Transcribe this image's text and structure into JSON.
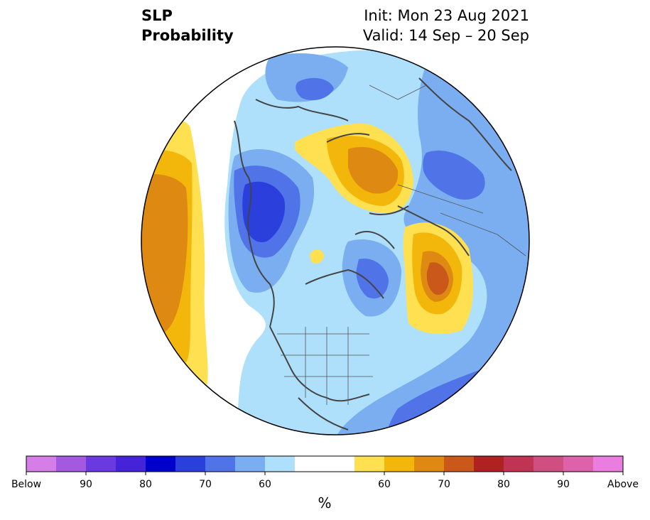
{
  "header": {
    "title_line1": "SLP",
    "title_line2": "Probability",
    "init_text": "Init: Mon 23 Aug 2021",
    "valid_text": "Valid: 14 Sep – 20 Sep"
  },
  "colorbar": {
    "unit": "%",
    "tick_labels": [
      "Below",
      "90",
      "80",
      "70",
      "60",
      "60",
      "70",
      "80",
      "90",
      "Above"
    ],
    "colors": [
      "#d67ee8",
      "#a45ae0",
      "#6a3ae0",
      "#4423d8",
      "#0000cc",
      "#2a3fdc",
      "#5073e8",
      "#7aaef0",
      "#aee0fb",
      "#ffffff",
      "#ffffff",
      "#ffe050",
      "#f2b70a",
      "#de8a12",
      "#c9581a",
      "#b02222",
      "#c03352",
      "#cf4f80",
      "#dd62aa",
      "#ea7ee0"
    ]
  },
  "map": {
    "projection": "north-polar-stereographic",
    "features": [
      "coastlines",
      "country-borders",
      "us-state-borders"
    ]
  }
}
